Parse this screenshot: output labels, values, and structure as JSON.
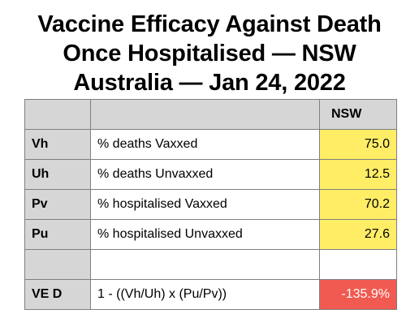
{
  "title": {
    "line1": "Vaccine Efficacy Against Death",
    "line2": "Once Hospitalised — NSW",
    "line3": "Australia — Jan 24, 2022"
  },
  "table": {
    "header": {
      "key": "",
      "desc": "",
      "value": "NSW"
    },
    "rows": [
      {
        "key": "Vh",
        "desc": "% deaths Vaxxed",
        "value": "75.0"
      },
      {
        "key": "Uh",
        "desc": "% deaths Unvaxxed",
        "value": "12.5"
      },
      {
        "key": "Pv",
        "desc": "% hospitalised Vaxxed",
        "value": "70.2"
      },
      {
        "key": "Pu",
        "desc": "% hospitalised Unvaxxed",
        "value": "27.6"
      },
      {
        "key": "",
        "desc": "",
        "value": ""
      },
      {
        "key": "VE D",
        "desc": "1 - ((Vh/Uh) x (Pu/Pv))",
        "value": "-135.9%"
      }
    ]
  },
  "colors": {
    "header_gray": "#d6d6d6",
    "value_yellow": "#ffed66",
    "result_red": "#f05a50",
    "border": "#7f7f7f"
  }
}
